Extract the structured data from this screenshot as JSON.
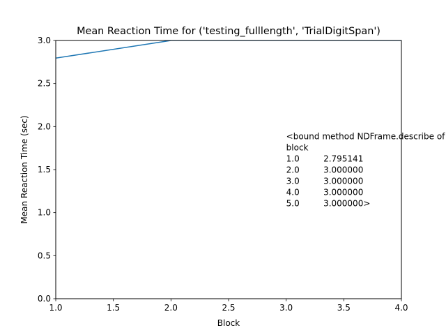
{
  "chart_data": {
    "type": "line",
    "title": "Mean Reaction Time for ('testing_fulllength', 'TrialDigitSpan')",
    "xlabel": "Block",
    "ylabel": "Mean Reaction Time (sec)",
    "xlim": [
      1.0,
      4.0
    ],
    "ylim": [
      0.0,
      3.0
    ],
    "xticks": [
      1.0,
      1.5,
      2.0,
      2.5,
      3.0,
      3.5,
      4.0
    ],
    "xtick_labels": [
      "1.0",
      "1.5",
      "2.0",
      "2.5",
      "3.0",
      "3.5",
      "4.0"
    ],
    "yticks": [
      0.0,
      0.5,
      1.0,
      1.5,
      2.0,
      2.5,
      3.0
    ],
    "ytick_labels": [
      "0.0",
      "0.5",
      "1.0",
      "1.5",
      "2.0",
      "2.5",
      "3.0"
    ],
    "grid": false,
    "series": [
      {
        "x": [
          1.0,
          2.0,
          3.0,
          4.0,
          5.0
        ],
        "y": [
          2.795141,
          3.0,
          3.0,
          3.0,
          3.0
        ],
        "color": "#1f77b4"
      }
    ],
    "annotation": {
      "x": 3.0,
      "y": 1.3,
      "lines": [
        "<bound method NDFrame.describe of",
        "block",
        "1.0         2.795141",
        "2.0         3.000000",
        "3.0         3.000000",
        "4.0         3.000000",
        "5.0         3.000000>"
      ]
    }
  }
}
